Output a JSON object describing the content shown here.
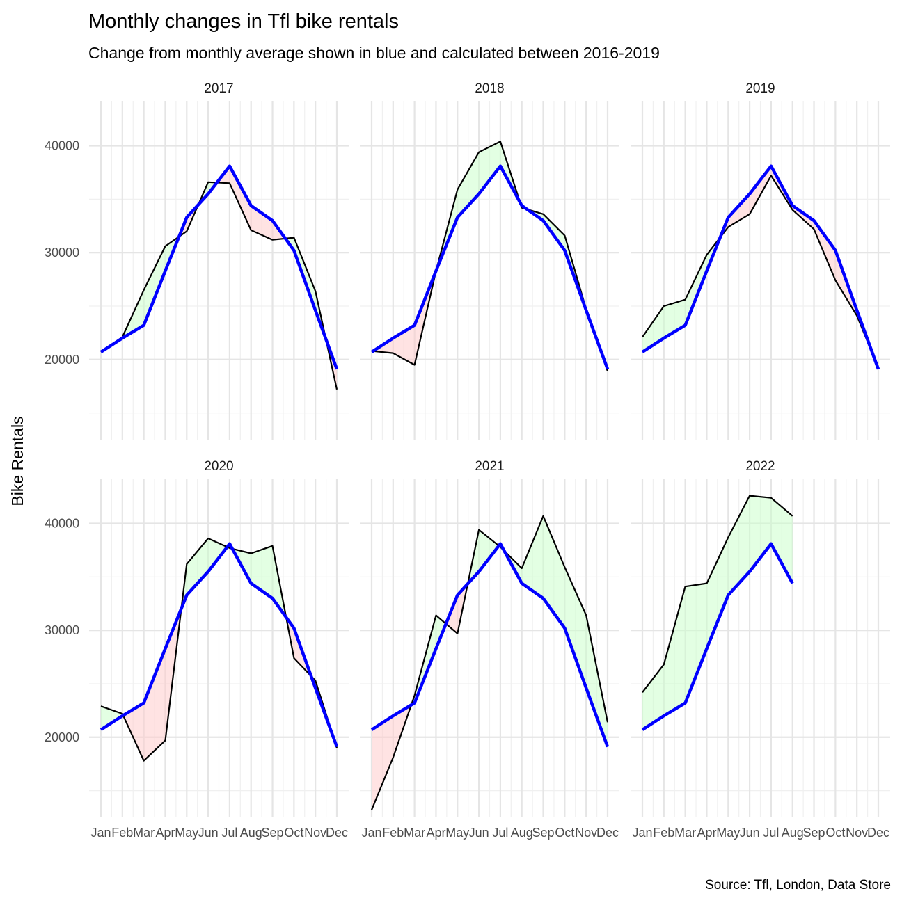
{
  "chart_data": {
    "type": "line",
    "title": "Monthly changes in Tfl bike rentals",
    "subtitle": "Change from monthly average shown in blue and calculated between 2016-2019",
    "ylabel": "Bike Rentals",
    "xlabel": "",
    "caption": "Source: Tfl, London, Data Store",
    "categories": [
      "Jan",
      "Feb",
      "Mar",
      "Apr",
      "May",
      "Jun",
      "Jul",
      "Aug",
      "Sep",
      "Oct",
      "Nov",
      "Dec"
    ],
    "y_ticks": [
      20000,
      30000,
      40000
    ],
    "ylim": [
      12500,
      44200
    ],
    "grid": true,
    "colors": {
      "actual_line": "#000000",
      "expected_line": "#0000ff",
      "above_fill": "#ccffcc",
      "below_fill": "#ffcccc"
    },
    "expected": [
      20700,
      22000,
      23200,
      28300,
      33300,
      35500,
      38100,
      34400,
      33000,
      30200,
      24600,
      19100
    ],
    "panels": [
      {
        "label": "2017",
        "actual": [
          20700,
          22100,
          26500,
          30600,
          32000,
          36600,
          36500,
          32100,
          31200,
          31400,
          26400,
          17200
        ]
      },
      {
        "label": "2018",
        "actual": [
          20800,
          20600,
          19500,
          28300,
          35900,
          39400,
          40400,
          34200,
          33600,
          31600,
          24700,
          18900
        ]
      },
      {
        "label": "2019",
        "actual": [
          22100,
          25000,
          25600,
          29800,
          32400,
          33600,
          37200,
          34000,
          32200,
          27400,
          24100,
          19200
        ]
      },
      {
        "label": "2020",
        "actual": [
          22900,
          22200,
          17800,
          19700,
          36200,
          38600,
          37700,
          37200,
          37900,
          27400,
          25300,
          19000
        ]
      },
      {
        "label": "2021",
        "actual": [
          13200,
          18100,
          23900,
          31400,
          29700,
          39400,
          37800,
          35800,
          40700,
          35900,
          31400,
          21400
        ]
      },
      {
        "label": "2022",
        "actual": [
          24200,
          26800,
          34100,
          34400,
          38700,
          42600,
          42400,
          40700
        ]
      }
    ]
  }
}
